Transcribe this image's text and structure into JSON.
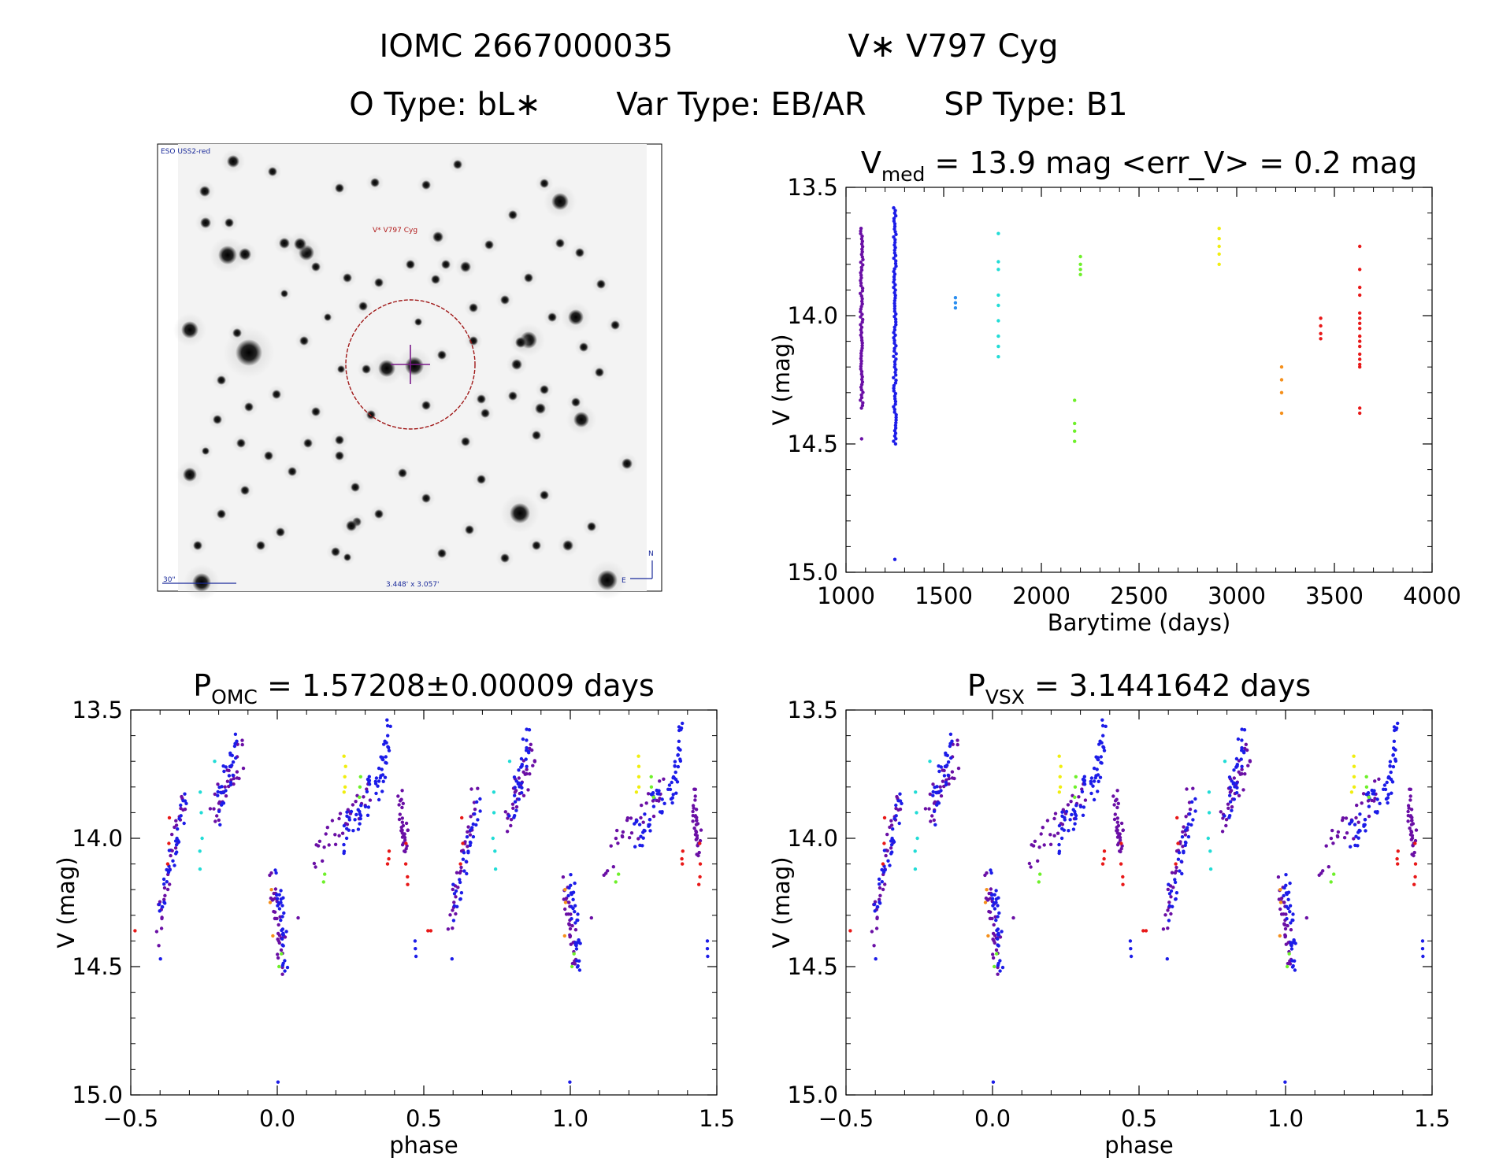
{
  "header": {
    "line1_id": "IOMC 2667000035",
    "line1_name": "V∗ V797 Cyg",
    "line2_otype": "O Type: bL∗",
    "line2_vartype": "Var Type: EB/AR",
    "line2_sptype": "SP Type: B1"
  },
  "finder": {
    "survey_label": "ESO USS2-red",
    "target_label": "V* V797 Cyg",
    "scale_label": "30\"",
    "fov_label": "3.448' x 3.057'",
    "north_label": "N",
    "east_label": "E"
  },
  "colors": {
    "purple": "#6a0fa5",
    "blue": "#1c1ce8",
    "lightblue": "#2a8ef0",
    "cyan": "#22dcd6",
    "green": "#6ef02a",
    "yellow": "#f0ee10",
    "orange": "#f5901c",
    "red": "#e81818",
    "ring": "#a01818",
    "crosshair": "#7a1a8a"
  },
  "chart_data": [
    {
      "id": "lightcurve",
      "type": "scatter",
      "title_main": "V",
      "title_sub": "med",
      "title_rest": " = 13.9 mag <err_V> = 0.2 mag",
      "xlabel": "Barytime (days)",
      "ylabel": "V (mag)",
      "xlim": [
        1000,
        4000
      ],
      "ylim": [
        15.0,
        13.5
      ],
      "xticks": [
        "1000",
        "1500",
        "2000",
        "2500",
        "3000",
        "3500",
        "4000"
      ],
      "yticks": [
        "13.5",
        "14.0",
        "14.5",
        "15.0"
      ],
      "series": [
        {
          "name": "epoch1",
          "color": "purple",
          "x": 1080,
          "vmin": 13.66,
          "vmax": 14.36,
          "n": 70,
          "outliers": [
            14.48
          ]
        },
        {
          "name": "epoch2",
          "color": "blue",
          "x": 1250,
          "vmin": 13.58,
          "vmax": 14.5,
          "n": 90,
          "outliers": [
            14.95
          ]
        },
        {
          "name": "epoch3",
          "color": "lightblue",
          "x": 1560,
          "values": [
            13.93,
            13.95,
            13.97
          ]
        },
        {
          "name": "epoch4",
          "color": "cyan",
          "x": 1780,
          "values": [
            13.68,
            13.79,
            13.82,
            13.92,
            13.96,
            14.02,
            14.08,
            14.12,
            14.16
          ]
        },
        {
          "name": "epoch5",
          "color": "green",
          "x": 2170,
          "values": [
            14.33,
            14.42,
            14.45,
            14.49
          ]
        },
        {
          "name": "epoch6",
          "color": "green",
          "x": 2200,
          "values": [
            13.77,
            13.8,
            13.82,
            13.84
          ]
        },
        {
          "name": "epoch7",
          "color": "yellow",
          "x": 2910,
          "values": [
            13.66,
            13.7,
            13.73,
            13.76,
            13.8
          ]
        },
        {
          "name": "epoch8",
          "color": "orange",
          "x": 3230,
          "values": [
            14.2,
            14.25,
            14.3,
            14.38
          ]
        },
        {
          "name": "epoch9",
          "color": "red",
          "x": 3430,
          "values": [
            14.01,
            14.04,
            14.07,
            14.09
          ]
        },
        {
          "name": "epoch10",
          "color": "red",
          "x": 3630,
          "values": [
            13.73,
            13.82,
            13.89,
            13.92,
            13.99,
            14.01,
            14.03,
            14.05,
            14.08,
            14.1,
            14.12,
            14.15,
            14.17,
            14.19,
            14.2,
            14.36,
            14.38
          ]
        }
      ]
    },
    {
      "id": "phase-omc",
      "type": "scatter",
      "title_main": "P",
      "title_sub": "OMC",
      "title_rest": " = 1.57208±0.00009 days",
      "xlabel": "phase",
      "ylabel": "V (mag)",
      "xlim": [
        -0.5,
        1.5
      ],
      "ylim": [
        15.0,
        13.5
      ],
      "xticks": [
        "−0.5",
        "0.0",
        "0.5",
        "1.0",
        "1.5"
      ],
      "yticks": [
        "13.5",
        "14.0",
        "14.5",
        "15.0"
      ],
      "segments": [
        {
          "phase": [
            -0.41,
            -0.32
          ],
          "v": [
            14.35,
            13.82
          ],
          "color": "purple"
        },
        {
          "phase": [
            -0.4,
            -0.31
          ],
          "v": [
            14.28,
            13.86
          ],
          "color": "blue"
        },
        {
          "phase": [
            -0.22,
            -0.12
          ],
          "v": [
            13.92,
            13.68
          ],
          "color": "purple"
        },
        {
          "phase": [
            -0.2,
            -0.14
          ],
          "v": [
            13.88,
            13.62
          ],
          "color": "blue"
        },
        {
          "phase": [
            -0.02,
            0.02
          ],
          "v": [
            14.2,
            14.46
          ],
          "color": "purple"
        },
        {
          "phase": [
            0.0,
            0.03
          ],
          "v": [
            14.15,
            14.5
          ],
          "color": "blue"
        },
        {
          "phase": [
            0.12,
            0.32
          ],
          "v": [
            14.08,
            13.82
          ],
          "color": "purple"
        },
        {
          "phase": [
            0.22,
            0.32
          ],
          "v": [
            14.0,
            13.82
          ],
          "color": "blue"
        },
        {
          "phase": [
            0.34,
            0.38
          ],
          "v": [
            13.84,
            13.6
          ],
          "color": "blue"
        },
        {
          "phase": [
            0.42,
            0.44
          ],
          "v": [
            13.85,
            14.05
          ],
          "color": "purple"
        }
      ],
      "specials": [
        {
          "phase": -0.37,
          "values": [
            13.92,
            14.02,
            14.1
          ],
          "color": "red"
        },
        {
          "phase": -0.26,
          "values": [
            13.82,
            13.9,
            14.0,
            14.05,
            14.12
          ],
          "color": "cyan"
        },
        {
          "phase": -0.21,
          "values": [
            13.7
          ],
          "color": "cyan"
        },
        {
          "phase": -0.49,
          "values": [
            14.36
          ],
          "color": "red"
        },
        {
          "phase": -0.4,
          "values": [
            14.47
          ],
          "color": "blue"
        },
        {
          "phase": -0.02,
          "values": [
            14.2,
            14.25,
            14.38
          ],
          "color": "orange"
        },
        {
          "phase": 0.01,
          "values": [
            14.45,
            14.5
          ],
          "color": "green"
        },
        {
          "phase": 0.0,
          "values": [
            14.95
          ],
          "color": "blue"
        },
        {
          "phase": 0.07,
          "values": [
            14.31
          ],
          "color": "purple"
        },
        {
          "phase": 0.16,
          "values": [
            14.14,
            14.17
          ],
          "color": "green"
        },
        {
          "phase": 0.23,
          "values": [
            13.68,
            13.72,
            13.76,
            13.8,
            13.82
          ],
          "color": "yellow"
        },
        {
          "phase": 0.28,
          "values": [
            13.76,
            13.8,
            13.84
          ],
          "color": "green"
        },
        {
          "phase": 0.38,
          "values": [
            14.05,
            14.08,
            14.1
          ],
          "color": "red"
        },
        {
          "phase": 0.44,
          "values": [
            14.02,
            14.1,
            14.15,
            14.18
          ],
          "color": "red"
        },
        {
          "phase": 0.47,
          "values": [
            14.4,
            14.43,
            14.46
          ],
          "color": "blue"
        },
        {
          "phase": 0.52,
          "values": [
            14.36
          ],
          "color": "red"
        }
      ]
    },
    {
      "id": "phase-vsx",
      "type": "scatter",
      "title_main": "P",
      "title_sub": "VSX",
      "title_rest": " = 3.1441642 days",
      "xlabel": "phase",
      "ylabel": "V (mag)",
      "xlim": [
        -0.5,
        1.5
      ],
      "ylim": [
        15.0,
        13.5
      ],
      "xticks": [
        "−0.5",
        "0.0",
        "0.5",
        "1.0",
        "1.5"
      ],
      "yticks": [
        "13.5",
        "14.0",
        "14.5",
        "15.0"
      ],
      "same_data_as": "phase-omc"
    }
  ]
}
